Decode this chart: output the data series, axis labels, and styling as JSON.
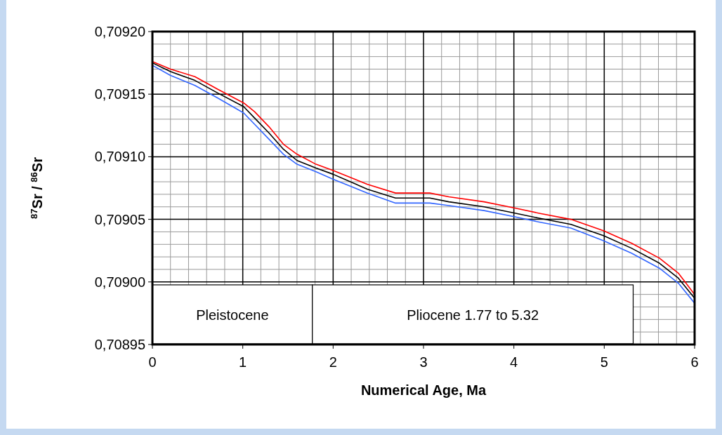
{
  "chart_data": {
    "type": "line",
    "xlabel": "Numerical Age,  Ma",
    "ylabel": "$^{87}$Sr / $^{86}$Sr",
    "x": [
      0,
      0.2,
      0.47,
      0.72,
      1.01,
      1.13,
      1.29,
      1.45,
      1.6,
      1.81,
      2.0,
      2.38,
      2.69,
      3.07,
      3.28,
      3.67,
      4.01,
      4.27,
      4.63,
      4.99,
      5.3,
      5.61,
      5.82,
      6.0
    ],
    "series": [
      {
        "color": "#ff0000",
        "values": [
          0.709176,
          0.70917,
          0.709164,
          0.709154,
          0.709143,
          0.709136,
          0.709124,
          0.70911,
          0.709102,
          0.709094,
          0.709089,
          0.709078,
          0.709071,
          0.709071,
          0.709068,
          0.709064,
          0.709059,
          0.709055,
          0.70905,
          0.709041,
          0.709031,
          0.709019,
          0.709007,
          0.70899
        ]
      },
      {
        "color": "#000000",
        "values": [
          0.709175,
          0.709168,
          0.709161,
          0.709151,
          0.70914,
          0.709131,
          0.709119,
          0.709106,
          0.709097,
          0.709091,
          0.709086,
          0.709074,
          0.709067,
          0.709067,
          0.709064,
          0.70906,
          0.709055,
          0.709051,
          0.709046,
          0.709037,
          0.709027,
          0.709015,
          0.709003,
          0.708987
        ]
      },
      {
        "color": "#3366ff",
        "values": [
          0.709173,
          0.709165,
          0.709157,
          0.709147,
          0.709135,
          0.709126,
          0.709114,
          0.709102,
          0.709094,
          0.709088,
          0.709082,
          0.709071,
          0.709063,
          0.709063,
          0.709061,
          0.709057,
          0.709052,
          0.709048,
          0.709043,
          0.709033,
          0.709023,
          0.709011,
          0.708999,
          0.708983
        ]
      }
    ],
    "xlim": [
      0,
      6
    ],
    "xticks": [
      0,
      1,
      2,
      3,
      4,
      5,
      6
    ],
    "ylim": [
      0.70895,
      0.7092
    ],
    "yticks": [
      {
        "value": 0.70895,
        "label": "0,70895"
      },
      {
        "value": 0.709,
        "label": "0,70900"
      },
      {
        "value": 0.70905,
        "label": "0,70905"
      },
      {
        "value": 0.7091,
        "label": "0,70910"
      },
      {
        "value": 0.70915,
        "label": "0,70915"
      },
      {
        "value": 0.7092,
        "label": "0,70920"
      }
    ],
    "bands": [
      {
        "axis": "x",
        "from": 0,
        "to": 1.77,
        "label": "Pleistocene",
        "color": "#ffffff"
      },
      {
        "axis": "x",
        "from": 1.77,
        "to": 5.32,
        "label": "Pliocene  1.77  to 5.32",
        "color": "#ffffff"
      }
    ],
    "grid": true,
    "line_style": "solid"
  }
}
